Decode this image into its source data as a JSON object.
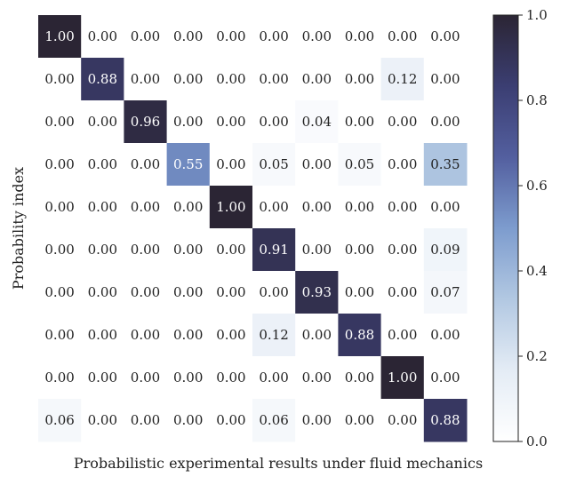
{
  "chart_data": {
    "type": "heatmap",
    "xlabel": "Probabilistic experimental results under fluid mechanics",
    "ylabel": "Probability index",
    "matrix": [
      [
        1.0,
        0.0,
        0.0,
        0.0,
        0.0,
        0.0,
        0.0,
        0.0,
        0.0,
        0.0
      ],
      [
        0.0,
        0.88,
        0.0,
        0.0,
        0.0,
        0.0,
        0.0,
        0.0,
        0.12,
        0.0
      ],
      [
        0.0,
        0.0,
        0.96,
        0.0,
        0.0,
        0.0,
        0.04,
        0.0,
        0.0,
        0.0
      ],
      [
        0.0,
        0.0,
        0.0,
        0.55,
        0.0,
        0.05,
        0.0,
        0.05,
        0.0,
        0.35
      ],
      [
        0.0,
        0.0,
        0.0,
        0.0,
        1.0,
        0.0,
        0.0,
        0.0,
        0.0,
        0.0
      ],
      [
        0.0,
        0.0,
        0.0,
        0.0,
        0.0,
        0.91,
        0.0,
        0.0,
        0.0,
        0.09
      ],
      [
        0.0,
        0.0,
        0.0,
        0.0,
        0.0,
        0.0,
        0.93,
        0.0,
        0.0,
        0.07
      ],
      [
        0.0,
        0.0,
        0.0,
        0.0,
        0.0,
        0.12,
        0.0,
        0.88,
        0.0,
        0.0
      ],
      [
        0.0,
        0.0,
        0.0,
        0.0,
        0.0,
        0.0,
        0.0,
        0.0,
        1.0,
        0.0
      ],
      [
        0.06,
        0.0,
        0.0,
        0.0,
        0.0,
        0.06,
        0.0,
        0.0,
        0.0,
        0.88
      ]
    ],
    "value_format": "0.00",
    "colorbar": {
      "range": [
        0.0,
        1.0
      ],
      "ticks": [
        "0.0",
        "0.2",
        "0.4",
        "0.6",
        "0.8",
        "1.0"
      ],
      "colors": [
        "#ffffff",
        "#e4ecf5",
        "#b2c8e2",
        "#7d9cce",
        "#535f9f",
        "#3b3e72",
        "#2b2534"
      ]
    }
  }
}
